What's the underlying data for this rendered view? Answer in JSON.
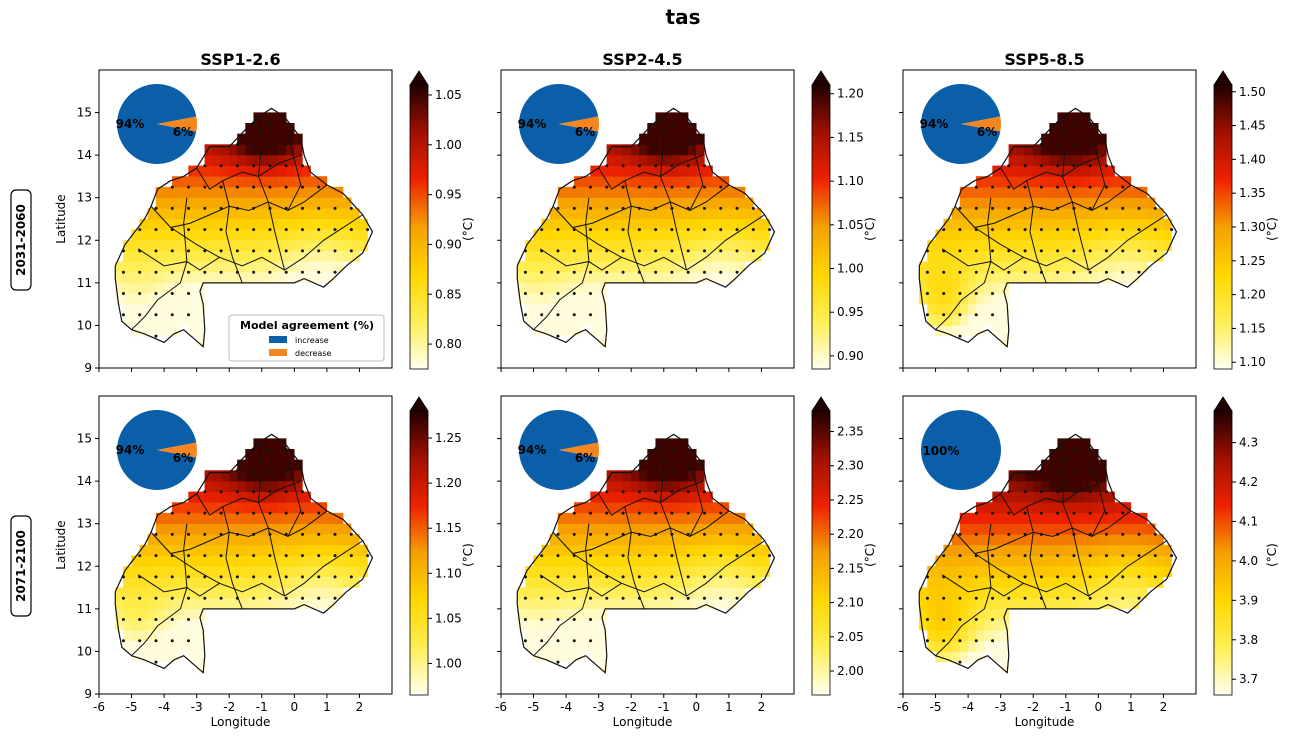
{
  "figure": {
    "title": "tas",
    "scenarios": [
      "SSP1-2.6",
      "SSP2-4.5",
      "SSP5-8.5"
    ],
    "periods": [
      "2031-2060",
      "2071-2100"
    ],
    "xlabel": "Longitude",
    "ylabel": "Latitude",
    "colorbar_label": "(°C)",
    "x_ticks": [
      "-6",
      "-5",
      "-4",
      "-3",
      "-2",
      "-1",
      "0",
      "1",
      "2"
    ],
    "y_ticks": [
      "9",
      "10",
      "11",
      "12",
      "13",
      "14",
      "15"
    ],
    "legend": {
      "title": "Model agreement (%)",
      "items": [
        {
          "label": "increase",
          "color": "#0b5fa8"
        },
        {
          "label": "decrease",
          "color": "#f5861f"
        }
      ]
    }
  },
  "chart_data": [
    {
      "type": "heatmap",
      "period": "2031-2060",
      "scenario": "SSP1-2.6",
      "xlim": [
        -6,
        3
      ],
      "ylim": [
        9,
        16
      ],
      "colorbar": {
        "min": 0.775,
        "max": 1.06,
        "ticks": [
          "0.80",
          "0.85",
          "0.90",
          "0.95",
          "1.00",
          "1.05"
        ],
        "label": "(°C)"
      },
      "agreement": {
        "increase": 94,
        "decrease": 6,
        "labels": [
          "94%",
          "6%"
        ]
      },
      "legend_shown": true
    },
    {
      "type": "heatmap",
      "period": "2031-2060",
      "scenario": "SSP2-4.5",
      "xlim": [
        -6,
        3
      ],
      "ylim": [
        9,
        16
      ],
      "colorbar": {
        "min": 0.885,
        "max": 1.21,
        "ticks": [
          "0.90",
          "0.95",
          "1.00",
          "1.05",
          "1.10",
          "1.15",
          "1.20"
        ],
        "label": "(°C)"
      },
      "agreement": {
        "increase": 94,
        "decrease": 6,
        "labels": [
          "94%",
          "6%"
        ]
      },
      "legend_shown": false
    },
    {
      "type": "heatmap",
      "period": "2031-2060",
      "scenario": "SSP5-8.5",
      "xlim": [
        -6,
        3
      ],
      "ylim": [
        9,
        16
      ],
      "colorbar": {
        "min": 1.09,
        "max": 1.51,
        "ticks": [
          "1.10",
          "1.15",
          "1.20",
          "1.25",
          "1.30",
          "1.35",
          "1.40",
          "1.45",
          "1.50"
        ],
        "label": "(°C)"
      },
      "agreement": {
        "increase": 94,
        "decrease": 6,
        "labels": [
          "94%",
          "6%"
        ]
      },
      "legend_shown": false
    },
    {
      "type": "heatmap",
      "period": "2071-2100",
      "scenario": "SSP1-2.6",
      "xlim": [
        -6,
        3
      ],
      "ylim": [
        9,
        16
      ],
      "colorbar": {
        "min": 0.965,
        "max": 1.28,
        "ticks": [
          "1.00",
          "1.05",
          "1.10",
          "1.15",
          "1.20",
          "1.25"
        ],
        "label": "(°C)"
      },
      "agreement": {
        "increase": 94,
        "decrease": 6,
        "labels": [
          "94%",
          "6%"
        ]
      },
      "legend_shown": false
    },
    {
      "type": "heatmap",
      "period": "2071-2100",
      "scenario": "SSP2-4.5",
      "xlim": [
        -6,
        3
      ],
      "ylim": [
        9,
        16
      ],
      "colorbar": {
        "min": 1.965,
        "max": 2.38,
        "ticks": [
          "2.00",
          "2.05",
          "2.10",
          "2.15",
          "2.20",
          "2.25",
          "2.30",
          "2.35"
        ],
        "label": "(°C)"
      },
      "agreement": {
        "increase": 94,
        "decrease": 6,
        "labels": [
          "94%",
          "6%"
        ]
      },
      "legend_shown": false
    },
    {
      "type": "heatmap",
      "period": "2071-2100",
      "scenario": "SSP5-8.5",
      "xlim": [
        -6,
        3
      ],
      "ylim": [
        9,
        16
      ],
      "colorbar": {
        "min": 3.66,
        "max": 4.38,
        "ticks": [
          "3.7",
          "3.8",
          "3.9",
          "4.0",
          "4.1",
          "4.2",
          "4.3"
        ],
        "label": "(°C)"
      },
      "agreement": {
        "increase": 100,
        "decrease": 0,
        "labels": [
          "100%"
        ]
      },
      "legend_shown": false
    }
  ],
  "colormap": [
    "#fffff0",
    "#ffee55",
    "#ffd700",
    "#f5a000",
    "#ee2200",
    "#a01000",
    "#200000"
  ]
}
